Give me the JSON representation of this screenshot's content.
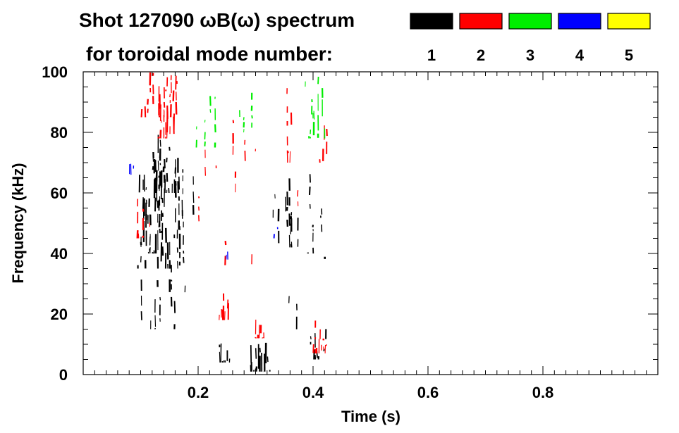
{
  "chart_data": {
    "type": "heatmap",
    "title_line1": "Shot 127090 ωB(ω) spectrum",
    "title_line2": "for toroidal mode number:",
    "xlabel": "Time (s)",
    "ylabel": "Frequency (kHz)",
    "xlim": [
      0.0,
      1.0
    ],
    "ylim": [
      0,
      100
    ],
    "x_ticks": [
      0.2,
      0.4,
      0.6,
      0.8
    ],
    "x_tick_labels": [
      "0.2",
      "0.4",
      "0.6",
      "0.8"
    ],
    "y_ticks": [
      0,
      20,
      40,
      60,
      80,
      100
    ],
    "y_tick_labels": [
      "0",
      "20",
      "40",
      "60",
      "80",
      "100"
    ],
    "legend_position": "top-right",
    "modes": [
      {
        "n": "1",
        "color": "#000000"
      },
      {
        "n": "2",
        "color": "#ff0000"
      },
      {
        "n": "3",
        "color": "#00ee00"
      },
      {
        "n": "4",
        "color": "#0000ff"
      },
      {
        "n": "5",
        "color": "#ffff00"
      }
    ],
    "regions": [
      {
        "mode": "1",
        "t": [
          0.095,
          0.175
        ],
        "f": [
          35,
          78
        ],
        "density": 0.55
      },
      {
        "mode": "1",
        "t": [
          0.1,
          0.135
        ],
        "f": [
          40,
          70
        ],
        "density": 0.8
      },
      {
        "mode": "1",
        "t": [
          0.12,
          0.165
        ],
        "f": [
          60,
          80
        ],
        "density": 0.6
      },
      {
        "mode": "1",
        "t": [
          0.095,
          0.16
        ],
        "f": [
          15,
          45
        ],
        "density": 0.25
      },
      {
        "mode": "1",
        "t": [
          0.16,
          0.2
        ],
        "f": [
          25,
          75
        ],
        "density": 0.18
      },
      {
        "mode": "1",
        "t": [
          0.235,
          0.255
        ],
        "f": [
          4,
          14
        ],
        "density": 0.75
      },
      {
        "mode": "1",
        "t": [
          0.29,
          0.325
        ],
        "f": [
          1,
          11
        ],
        "density": 0.8
      },
      {
        "mode": "1",
        "t": [
          0.33,
          0.375
        ],
        "f": [
          42,
          65
        ],
        "density": 0.35
      },
      {
        "mode": "1",
        "t": [
          0.355,
          0.375
        ],
        "f": [
          10,
          40
        ],
        "density": 0.25
      },
      {
        "mode": "1",
        "t": [
          0.385,
          0.405
        ],
        "f": [
          40,
          70
        ],
        "density": 0.3
      },
      {
        "mode": "1",
        "t": [
          0.395,
          0.42
        ],
        "f": [
          5,
          35
        ],
        "density": 0.35
      },
      {
        "mode": "1",
        "t": [
          0.405,
          0.425
        ],
        "f": [
          10,
          55
        ],
        "density": 0.22
      },
      {
        "mode": "2",
        "t": [
          0.1,
          0.165
        ],
        "f": [
          85,
          100
        ],
        "density": 0.35
      },
      {
        "mode": "2",
        "t": [
          0.13,
          0.16
        ],
        "f": [
          78,
          92
        ],
        "density": 0.6
      },
      {
        "mode": "2",
        "t": [
          0.09,
          0.12
        ],
        "f": [
          45,
          60
        ],
        "density": 0.3
      },
      {
        "mode": "2",
        "t": [
          0.195,
          0.3
        ],
        "f": [
          20,
          100
        ],
        "density": 0.1
      },
      {
        "mode": "2",
        "t": [
          0.235,
          0.255
        ],
        "f": [
          18,
          28
        ],
        "density": 0.7
      },
      {
        "mode": "2",
        "t": [
          0.3,
          0.315
        ],
        "f": [
          12,
          20
        ],
        "density": 0.6
      },
      {
        "mode": "2",
        "t": [
          0.34,
          0.375
        ],
        "f": [
          20,
          100
        ],
        "density": 0.12
      },
      {
        "mode": "2",
        "t": [
          0.35,
          0.37
        ],
        "f": [
          70,
          98
        ],
        "density": 0.4
      },
      {
        "mode": "2",
        "t": [
          0.4,
          0.425
        ],
        "f": [
          7,
          20
        ],
        "density": 0.65
      },
      {
        "mode": "2",
        "t": [
          0.41,
          0.43
        ],
        "f": [
          70,
          85
        ],
        "density": 0.3
      },
      {
        "mode": "3",
        "t": [
          0.195,
          0.23
        ],
        "f": [
          75,
          100
        ],
        "density": 0.25
      },
      {
        "mode": "3",
        "t": [
          0.255,
          0.295
        ],
        "f": [
          80,
          100
        ],
        "density": 0.12
      },
      {
        "mode": "3",
        "t": [
          0.385,
          0.42
        ],
        "f": [
          78,
          100
        ],
        "density": 0.45
      },
      {
        "mode": "3",
        "t": [
          0.34,
          0.37
        ],
        "f": [
          10,
          30
        ],
        "density": 0.05
      },
      {
        "mode": "4",
        "t": [
          0.08,
          0.09
        ],
        "f": [
          66,
          72
        ],
        "density": 0.4
      },
      {
        "mode": "4",
        "t": [
          0.245,
          0.255
        ],
        "f": [
          38,
          42
        ],
        "density": 0.4
      },
      {
        "mode": "4",
        "t": [
          0.33,
          0.34
        ],
        "f": [
          45,
          50
        ],
        "density": 0.2
      }
    ]
  }
}
